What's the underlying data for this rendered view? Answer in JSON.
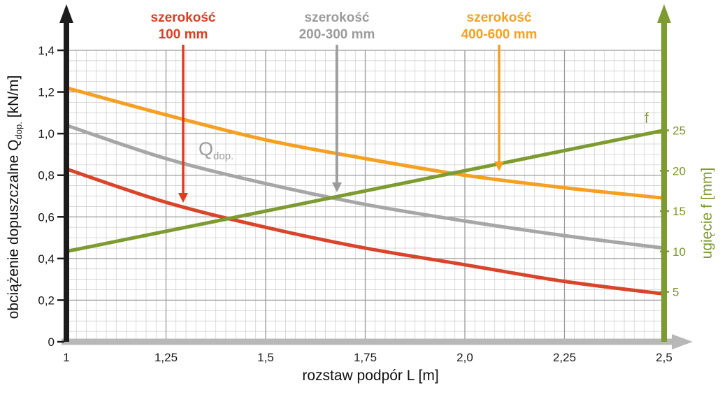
{
  "chart_data": {
    "type": "line",
    "title": "",
    "xlabel": "rozstaw podpór L [m]",
    "ylabel_parts": {
      "pre": "obciążenie dopuszczalne Q",
      "sub": "dop.",
      "post": " [kN/m]"
    },
    "y2label": "ugięcie f [mm]",
    "x_range": [
      1,
      2.5
    ],
    "y_left_range": [
      0,
      1.4
    ],
    "y_right_range": [
      5,
      25
    ],
    "grid": true,
    "x_ticks": [
      "1",
      "1,25",
      "1,5",
      "1,75",
      "2,0",
      "2,25",
      "2,5"
    ],
    "x_tick_values": [
      1,
      1.25,
      1.5,
      1.75,
      2.0,
      2.25,
      2.5
    ],
    "y_ticks": [
      "0",
      "0,2",
      "0,4",
      "0,6",
      "0,8",
      "1,0",
      "1,2",
      "1,4"
    ],
    "y_tick_values": [
      0,
      0.2,
      0.4,
      0.6,
      0.8,
      1.0,
      1.2,
      1.4
    ],
    "f_ticks": [
      "5",
      "10",
      "15",
      "20",
      "25"
    ],
    "f_tick_values": [
      5,
      10,
      15,
      20,
      25
    ],
    "right_axis_color": "#7d9b30",
    "x": [
      1,
      1.25,
      1.5,
      1.75,
      2.0,
      2.25,
      2.5
    ],
    "series": [
      {
        "name": "szerokość 100 mm",
        "axis": "left",
        "color": "#d9452a",
        "values": [
          0.83,
          0.67,
          0.55,
          0.45,
          0.37,
          0.29,
          0.23
        ]
      },
      {
        "name": "szerokość 200-300 mm",
        "axis": "left",
        "color": "#a6a6a6",
        "values": [
          1.04,
          0.88,
          0.76,
          0.66,
          0.58,
          0.51,
          0.45
        ]
      },
      {
        "name": "szerokość 400-600 mm",
        "axis": "left",
        "color": "#f5a021",
        "values": [
          1.22,
          1.09,
          0.97,
          0.88,
          0.8,
          0.74,
          0.69
        ]
      },
      {
        "name": "ugięcie f",
        "axis": "right",
        "color": "#7d9b30",
        "values": [
          10,
          12.5,
          15,
          17.5,
          20,
          22.5,
          25
        ]
      }
    ]
  },
  "annotations": {
    "label1": {
      "line1": "szerokość",
      "line2": "100 mm",
      "color": "#e03c1e"
    },
    "label2": {
      "line1": "szerokość",
      "line2": "200-300 mm",
      "color": "#9b9b9b"
    },
    "label3": {
      "line1": "szerokość",
      "line2": "400-600 mm",
      "color": "#f5a021"
    },
    "qdop": {
      "main": "Q",
      "sub": "dop."
    },
    "f_label": "f"
  }
}
